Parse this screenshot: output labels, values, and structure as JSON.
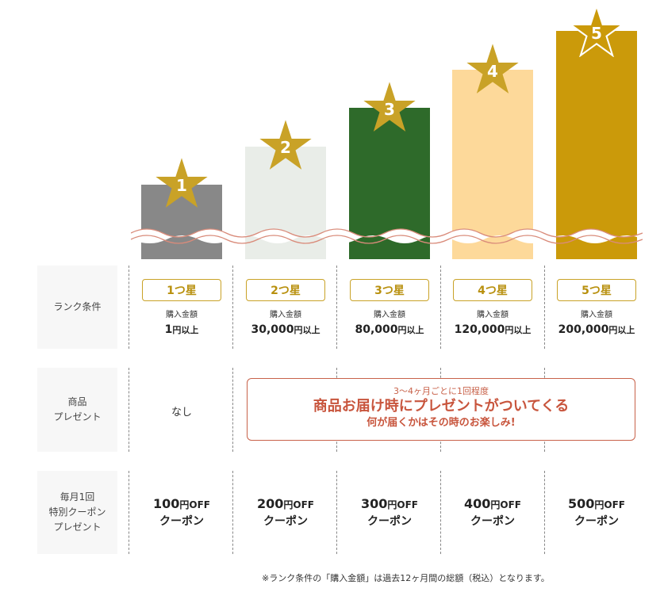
{
  "colors": {
    "gold": "#c9a227",
    "rank1": "#888888",
    "rank2": "#e9ede8",
    "rank3": "#2e6a2a",
    "rank4": "#fdd99a",
    "rank5": "#cb9a0a",
    "present": "#c8553d"
  },
  "ranks": [
    {
      "num": "1",
      "badge": "1つ星",
      "label": "購入金額",
      "amount": "1",
      "unit": "円以上",
      "coupon_amount": "100",
      "coupon_unit": "円OFF",
      "coupon_word": "クーポン"
    },
    {
      "num": "2",
      "badge": "2つ星",
      "label": "購入金額",
      "amount": "30,000",
      "unit": "円以上",
      "coupon_amount": "200",
      "coupon_unit": "円OFF",
      "coupon_word": "クーポン"
    },
    {
      "num": "3",
      "badge": "3つ星",
      "label": "購入金額",
      "amount": "80,000",
      "unit": "円以上",
      "coupon_amount": "300",
      "coupon_unit": "円OFF",
      "coupon_word": "クーポン"
    },
    {
      "num": "4",
      "badge": "4つ星",
      "label": "購入金額",
      "amount": "120,000",
      "unit": "円以上",
      "coupon_amount": "400",
      "coupon_unit": "円OFF",
      "coupon_word": "クーポン"
    },
    {
      "num": "5",
      "badge": "5つ星",
      "label": "購入金額",
      "amount": "200,000",
      "unit": "円以上",
      "coupon_amount": "500",
      "coupon_unit": "円OFF",
      "coupon_word": "クーポン"
    }
  ],
  "rows": {
    "condition": "ランク条件",
    "present": "商品\nプレゼント",
    "coupon": "毎月1回\n特別クーポン\nプレゼント"
  },
  "present": {
    "none": "なし",
    "sub": "3〜4ヶ月ごとに1回程度",
    "main": "商品お届け時にプレゼントがついてくる",
    "note": "何が届くかはその時のお楽しみ!"
  },
  "footnote": "※ランク条件の「購入金額」は過去12ヶ月間の総額（税込）となります。"
}
